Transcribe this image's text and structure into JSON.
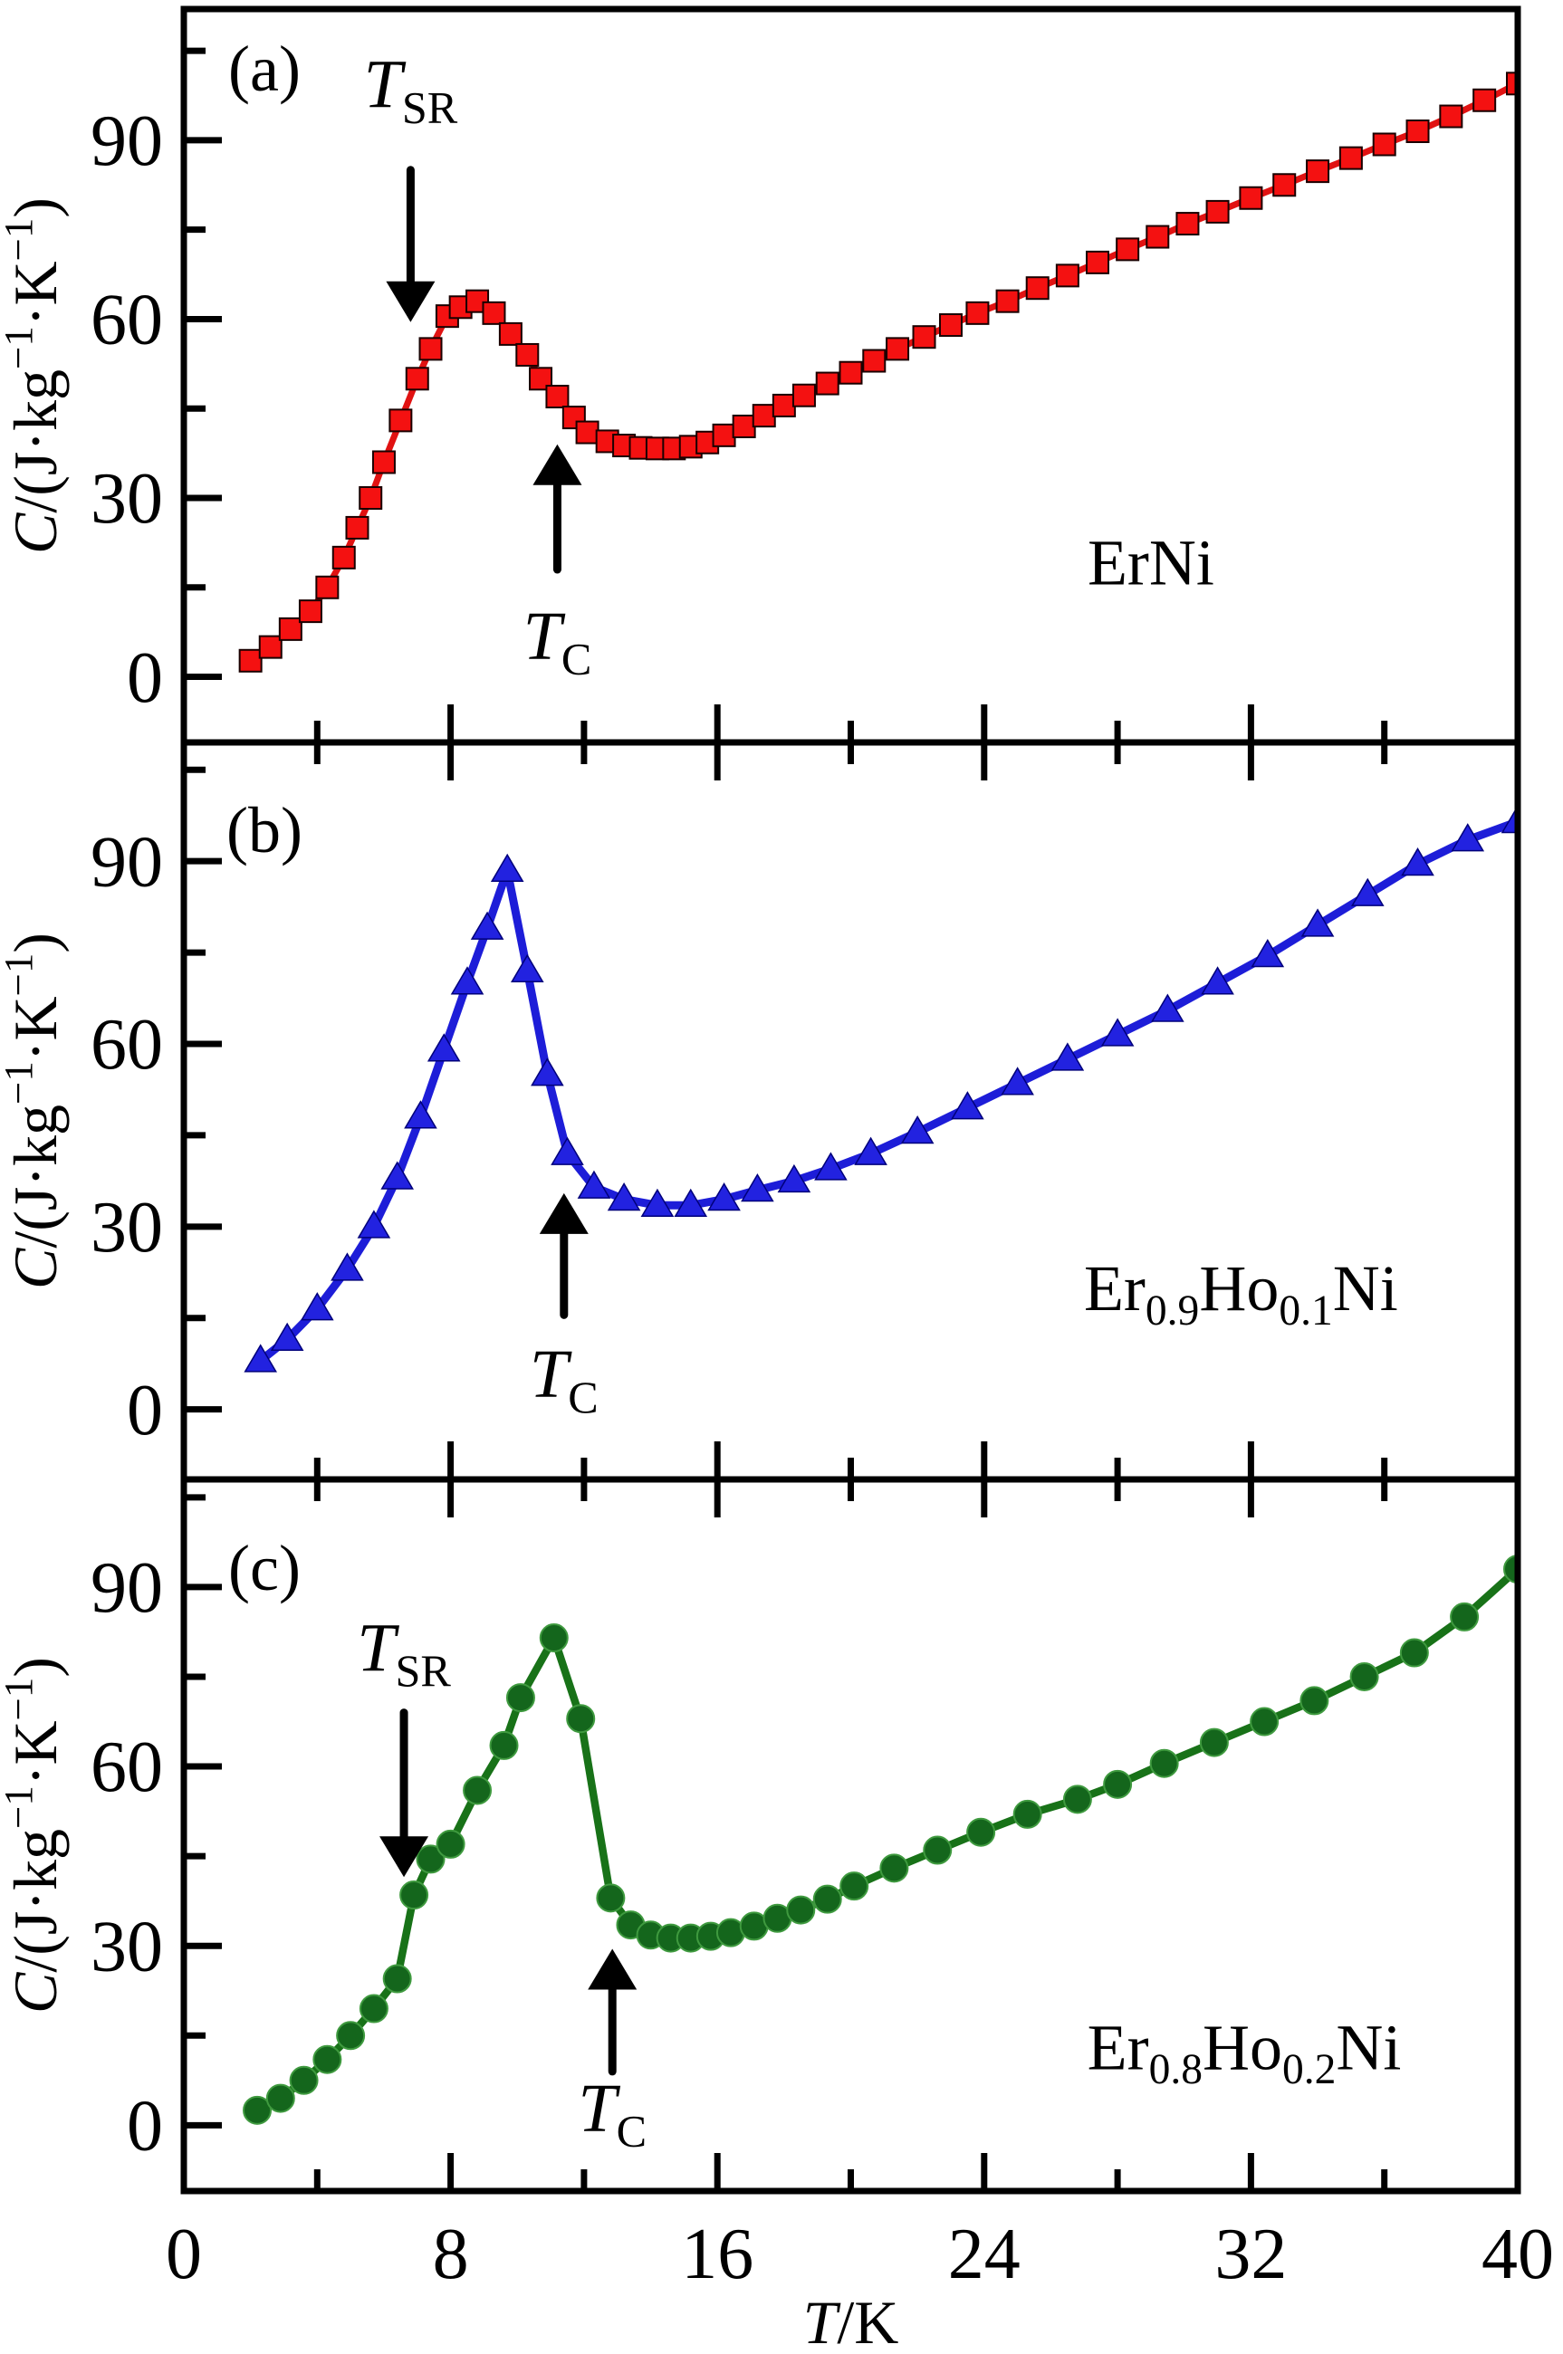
{
  "figure": {
    "xlabel": "T/K",
    "ylabel": "C/(J·kg−1·K−1)",
    "xlabel_parts": [
      {
        "text": "T",
        "italic": true
      },
      {
        "text": "/K"
      }
    ],
    "ylabel_parts": [
      {
        "text": "C",
        "italic": true
      },
      {
        "text": "/(J·kg"
      },
      {
        "text": "−1",
        "sup": true
      },
      {
        "text": "·K"
      },
      {
        "text": "−1",
        "sup": true
      },
      {
        "text": ")"
      }
    ],
    "background_color": "#ffffff",
    "axis_color": "#000000"
  },
  "chart_data": [
    {
      "type": "line",
      "panel_label": "(a)",
      "material": "ErNi",
      "material_parts": [
        {
          "text": "ErNi"
        }
      ],
      "marker": "square",
      "line_color": "#e11212",
      "marker_fill": "#f41111",
      "marker_edge": "#1a0000",
      "xlim": [
        0,
        40
      ],
      "ylim": [
        -11,
        112
      ],
      "x_major_ticks": [
        0,
        8,
        16,
        24,
        32,
        40
      ],
      "x_minor_ticks": [
        4,
        12,
        20,
        28,
        36
      ],
      "y_major_ticks": [
        0,
        30,
        60,
        90
      ],
      "y_minor_ticks": [
        15,
        45,
        75,
        105
      ],
      "grid": false,
      "annotation_pos": {
        "x": 29,
        "c": 15.5
      },
      "arrows": [
        {
          "main": "T",
          "sub": "SR",
          "x": 6.8,
          "tail_c": 85,
          "tip_c": 59.5,
          "label_c": 95.5,
          "dir": "down"
        },
        {
          "main": "T",
          "sub": "C",
          "x": 11.2,
          "tail_c": 18,
          "tip_c": 39,
          "label_c": 3,
          "dir": "up"
        }
      ],
      "x": [
        2.0,
        2.6,
        3.2,
        3.8,
        4.3,
        4.8,
        5.2,
        5.6,
        6.0,
        6.5,
        7.0,
        7.4,
        7.9,
        8.3,
        8.8,
        9.3,
        9.8,
        10.3,
        10.7,
        11.2,
        11.7,
        12.1,
        12.7,
        13.2,
        13.7,
        14.2,
        14.7,
        15.2,
        15.7,
        16.2,
        16.8,
        17.4,
        18.0,
        18.6,
        19.3,
        20.0,
        20.7,
        21.4,
        22.2,
        23.0,
        23.8,
        24.7,
        25.6,
        26.5,
        27.4,
        28.3,
        29.2,
        30.1,
        31.0,
        32.0,
        33.0,
        34.0,
        35.0,
        36.0,
        37.0,
        38.0,
        39.0,
        40.0
      ],
      "y": [
        2.7,
        5,
        8,
        11,
        15,
        20,
        25,
        30,
        36,
        43,
        50,
        55,
        60.5,
        62,
        63,
        61,
        57.5,
        54,
        50,
        47,
        43.5,
        41,
        39.5,
        38.8,
        38.4,
        38.3,
        38.3,
        38.6,
        39.3,
        40.5,
        42,
        43.8,
        45.5,
        47.2,
        49.2,
        51,
        53,
        55,
        57,
        59,
        61,
        63,
        65.2,
        67.3,
        69.5,
        71.7,
        73.8,
        76,
        78,
        80.3,
        82.5,
        84.8,
        87,
        89.3,
        91.5,
        94,
        96.7,
        99.5
      ]
    },
    {
      "type": "line",
      "panel_label": "(b)",
      "material": "Er0.9Ho0.1Ni",
      "material_parts": [
        {
          "text": "Er"
        },
        {
          "text": "0.9",
          "sub": true
        },
        {
          "text": "Ho"
        },
        {
          "text": "0.1",
          "sub": true
        },
        {
          "text": "Ni"
        }
      ],
      "marker": "triangle",
      "line_color": "#1d1dd8",
      "marker_fill": "#2222e0",
      "marker_edge": "#00007a",
      "xlim": [
        0,
        40
      ],
      "ylim": [
        -11.5,
        109.5
      ],
      "x_major_ticks": [
        0,
        8,
        16,
        24,
        32,
        40
      ],
      "x_minor_ticks": [
        4,
        12,
        20,
        28,
        36
      ],
      "y_major_ticks": [
        0,
        30,
        60,
        90
      ],
      "y_minor_ticks": [
        15,
        45,
        75,
        105
      ],
      "grid": false,
      "annotation_pos": {
        "x": 31.7,
        "c": 16.3
      },
      "arrows": [
        {
          "main": "T",
          "sub": "C",
          "x": 11.4,
          "tail_c": 15.5,
          "tip_c": 35.5,
          "label_c": 2,
          "dir": "up"
        }
      ],
      "x": [
        2.3,
        3.1,
        4.0,
        4.9,
        5.7,
        6.4,
        7.1,
        7.8,
        8.5,
        9.1,
        9.7,
        10.3,
        10.9,
        11.5,
        12.3,
        13.2,
        14.2,
        15.2,
        16.2,
        17.2,
        18.3,
        19.4,
        20.6,
        22.0,
        23.5,
        25.0,
        26.5,
        28.0,
        29.5,
        31.0,
        32.5,
        34.0,
        35.5,
        37.0,
        38.5,
        40.0
      ],
      "y": [
        8,
        11.5,
        16.5,
        23,
        30,
        38,
        48,
        59,
        70,
        79,
        88.5,
        72,
        55,
        42,
        36.5,
        34.5,
        33.5,
        33.5,
        34.5,
        36,
        37.5,
        39.5,
        42,
        45.5,
        49.5,
        53.5,
        57.5,
        61.5,
        65.5,
        70,
        74.5,
        79.5,
        84.5,
        89.5,
        93.5,
        96.5
      ]
    },
    {
      "type": "line",
      "panel_label": "(c)",
      "material": "Er0.8Ho0.2Ni",
      "material_parts": [
        {
          "text": "Er"
        },
        {
          "text": "0.8",
          "sub": true
        },
        {
          "text": "Ho"
        },
        {
          "text": "0.2",
          "sub": true
        },
        {
          "text": "Ni"
        }
      ],
      "marker": "circle",
      "line_color": "#187218",
      "marker_fill": "#14661c",
      "marker_edge": "#3f9a3f",
      "xlim": [
        0,
        40
      ],
      "ylim": [
        -11,
        108
      ],
      "x_major_ticks": [
        0,
        8,
        16,
        24,
        32,
        40
      ],
      "x_minor_ticks": [
        4,
        12,
        20,
        28,
        36
      ],
      "y_major_ticks": [
        0,
        30,
        60,
        90
      ],
      "y_minor_ticks": [
        15,
        45,
        75,
        105
      ],
      "grid": false,
      "annotation_pos": {
        "x": 31.8,
        "c": 9.4
      },
      "arrows": [
        {
          "main": "T",
          "sub": "SR",
          "x": 6.6,
          "tail_c": 69,
          "tip_c": 41.5,
          "label_c": 76,
          "dir": "down"
        },
        {
          "main": "T",
          "sub": "C",
          "x": 12.85,
          "tail_c": 9,
          "tip_c": 29.5,
          "label_c": -1,
          "dir": "up"
        }
      ],
      "x": [
        2.2,
        2.9,
        3.6,
        4.3,
        5.0,
        5.7,
        6.4,
        6.9,
        7.4,
        8.0,
        8.8,
        9.6,
        10.1,
        11.1,
        11.9,
        12.8,
        13.4,
        14.0,
        14.6,
        15.2,
        15.8,
        16.4,
        17.1,
        17.8,
        18.5,
        19.3,
        20.1,
        21.3,
        22.6,
        23.9,
        25.3,
        26.8,
        28.0,
        29.4,
        30.9,
        32.4,
        33.9,
        35.4,
        36.9,
        38.4,
        40.0
      ],
      "y": [
        2.5,
        4.5,
        7.5,
        11,
        15,
        19.5,
        24.5,
        38.5,
        44.5,
        47,
        56,
        63.5,
        71.5,
        81.5,
        68,
        38,
        33.5,
        31.8,
        31.3,
        31.3,
        31.6,
        32.2,
        33.3,
        34.6,
        36,
        37.8,
        40,
        43,
        46,
        49,
        52,
        54.5,
        57,
        60.5,
        64,
        67.5,
        71,
        75,
        79,
        85,
        93
      ]
    }
  ]
}
